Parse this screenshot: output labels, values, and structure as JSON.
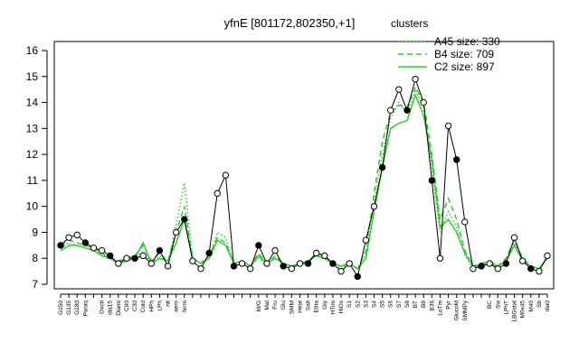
{
  "chart_data": {
    "type": "line",
    "title": "yfnE [801172,802350,+1]",
    "categories": [
      "G150",
      "G135",
      "G180",
      "Paraq",
      null,
      "Oxctl",
      "dia15",
      "Diami",
      "C90",
      "C30",
      "Cold",
      "HPh",
      "LPh",
      "nit",
      "aero",
      "ferm",
      null,
      null,
      null,
      null,
      null,
      null,
      null,
      null,
      "M/G",
      "Mal",
      "Fru",
      "Glu",
      "SMM",
      "Heat",
      "Salt",
      "Etha",
      "Gly",
      "HTim",
      "HiOs",
      "S1",
      "S2",
      "S3",
      "S4",
      "S5",
      "S6",
      "S7",
      "S8",
      "BT",
      "B8",
      "B36",
      "LoTm",
      "Pyr",
      "GlucoM",
      "SMMPy",
      null,
      null,
      "BC",
      "Sw",
      "LPhT",
      "LBGstat",
      "M0x45",
      "M40",
      "Sb",
      "dia0"
    ],
    "values": [
      8.5,
      8.8,
      8.9,
      8.6,
      8.4,
      8.3,
      8.1,
      7.8,
      8.0,
      8.0,
      8.1,
      7.8,
      8.3,
      7.7,
      9.0,
      9.5,
      7.9,
      7.6,
      8.2,
      10.5,
      11.2,
      7.7,
      7.8,
      7.6,
      8.5,
      7.8,
      8.3,
      7.7,
      7.6,
      7.8,
      7.8,
      8.2,
      8.1,
      7.8,
      7.5,
      7.8,
      7.3,
      8.7,
      10.0,
      11.5,
      13.7,
      14.5,
      13.7,
      14.9,
      14.0,
      11.0,
      8.0,
      13.1,
      11.8,
      9.4,
      7.6,
      7.7,
      7.8,
      7.6,
      7.8,
      8.8,
      7.9,
      7.6,
      7.5,
      8.1
    ],
    "color": "#000000",
    "legend_title": "clusters",
    "series": [
      {
        "name": "A45 size: 330",
        "color": "#33cc33",
        "dash": "dotted",
        "values": [
          8.4,
          8.6,
          8.5,
          8.4,
          8.3,
          8.1,
          8.0,
          7.8,
          7.9,
          8.0,
          8.3,
          7.8,
          8.1,
          7.8,
          9.3,
          10.9,
          8.0,
          7.8,
          8.0,
          9.0,
          8.8,
          7.8,
          7.9,
          7.7,
          8.0,
          7.8,
          8.0,
          7.8,
          7.7,
          7.8,
          7.9,
          8.1,
          8.0,
          7.8,
          7.6,
          7.8,
          7.6,
          8.2,
          10.2,
          12.0,
          13.4,
          14.0,
          13.6,
          14.5,
          13.8,
          11.5,
          9.0,
          9.8,
          9.2,
          8.1,
          7.6,
          7.7,
          7.9,
          7.7,
          7.9,
          8.6,
          7.9,
          7.7,
          7.6,
          8.0
        ]
      },
      {
        "name": "B4 size: 709",
        "color": "#33cc33",
        "dash": "dashed",
        "values": [
          8.5,
          8.7,
          8.6,
          8.5,
          8.4,
          8.2,
          8.0,
          7.9,
          8.0,
          8.1,
          8.5,
          7.9,
          8.2,
          7.9,
          9.0,
          10.0,
          8.0,
          7.8,
          8.1,
          8.8,
          8.6,
          7.8,
          7.9,
          7.7,
          8.2,
          7.8,
          8.1,
          7.8,
          7.7,
          7.8,
          7.9,
          8.2,
          8.1,
          7.8,
          7.7,
          7.8,
          7.6,
          8.3,
          10.5,
          12.5,
          13.6,
          13.9,
          13.8,
          14.6,
          14.0,
          12.0,
          9.5,
          10.3,
          9.5,
          8.3,
          7.7,
          7.8,
          7.9,
          7.7,
          8.0,
          8.7,
          8.0,
          7.7,
          7.6,
          8.0
        ]
      },
      {
        "name": "C2 size: 897",
        "color": "#33cc33",
        "dash": "solid",
        "values": [
          8.3,
          8.5,
          8.5,
          8.4,
          8.3,
          8.1,
          8.0,
          7.8,
          7.9,
          8.0,
          8.6,
          7.8,
          8.0,
          7.9,
          8.6,
          9.5,
          8.0,
          7.8,
          8.0,
          8.7,
          8.5,
          7.8,
          7.9,
          7.7,
          8.1,
          7.8,
          8.0,
          7.8,
          7.7,
          7.8,
          7.9,
          8.1,
          8.0,
          7.8,
          7.7,
          7.8,
          7.6,
          8.0,
          9.8,
          11.5,
          13.0,
          13.2,
          13.3,
          14.3,
          13.5,
          11.8,
          9.2,
          9.5,
          9.0,
          8.2,
          7.7,
          7.7,
          7.8,
          7.7,
          7.9,
          8.5,
          7.9,
          7.7,
          7.6,
          8.0
        ]
      }
    ],
    "ylim": [
      7,
      16
    ],
    "yticks": [
      7,
      8,
      9,
      10,
      11,
      12,
      13,
      14,
      15,
      16
    ]
  }
}
